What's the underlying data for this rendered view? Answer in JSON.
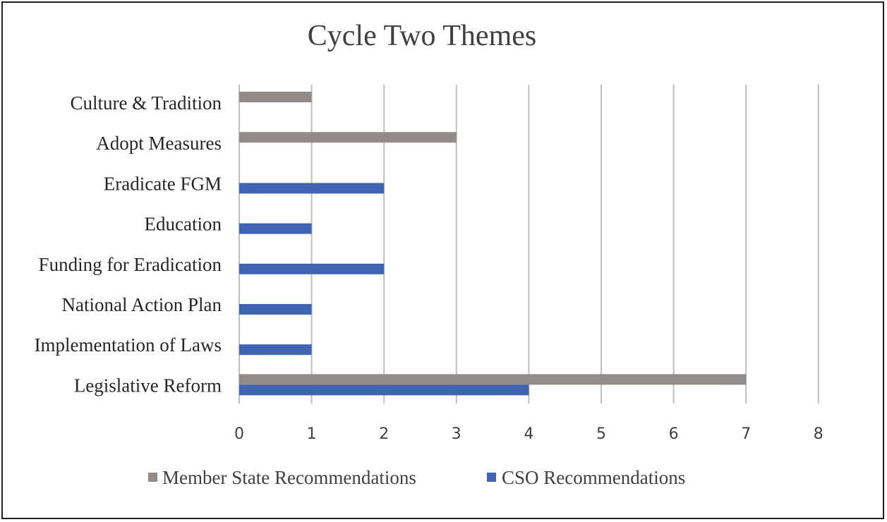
{
  "chart_data": {
    "type": "bar",
    "orientation": "horizontal",
    "title": "Cycle Two Themes",
    "categories": [
      "Culture & Tradition",
      "Adopt Measures",
      "Eradicate FGM",
      "Education",
      "Funding for Eradication",
      "National Action Plan",
      "Implementation of Laws",
      "Legislative Reform"
    ],
    "series": [
      {
        "name": "Member State Recommendations",
        "color": "#938b87",
        "values": [
          1,
          3,
          0,
          0,
          0,
          0,
          0,
          7
        ]
      },
      {
        "name": "CSO Recommendations",
        "color": "#4064b4",
        "values": [
          0,
          0,
          2,
          1,
          2,
          1,
          1,
          4
        ]
      }
    ],
    "xlim": [
      0,
      8
    ],
    "xticks": [
      "0",
      "1",
      "2",
      "3",
      "4",
      "5",
      "6",
      "7",
      "8"
    ],
    "grid": "vertical",
    "legend": "bottom",
    "gridColor": "#bfbfbf"
  }
}
